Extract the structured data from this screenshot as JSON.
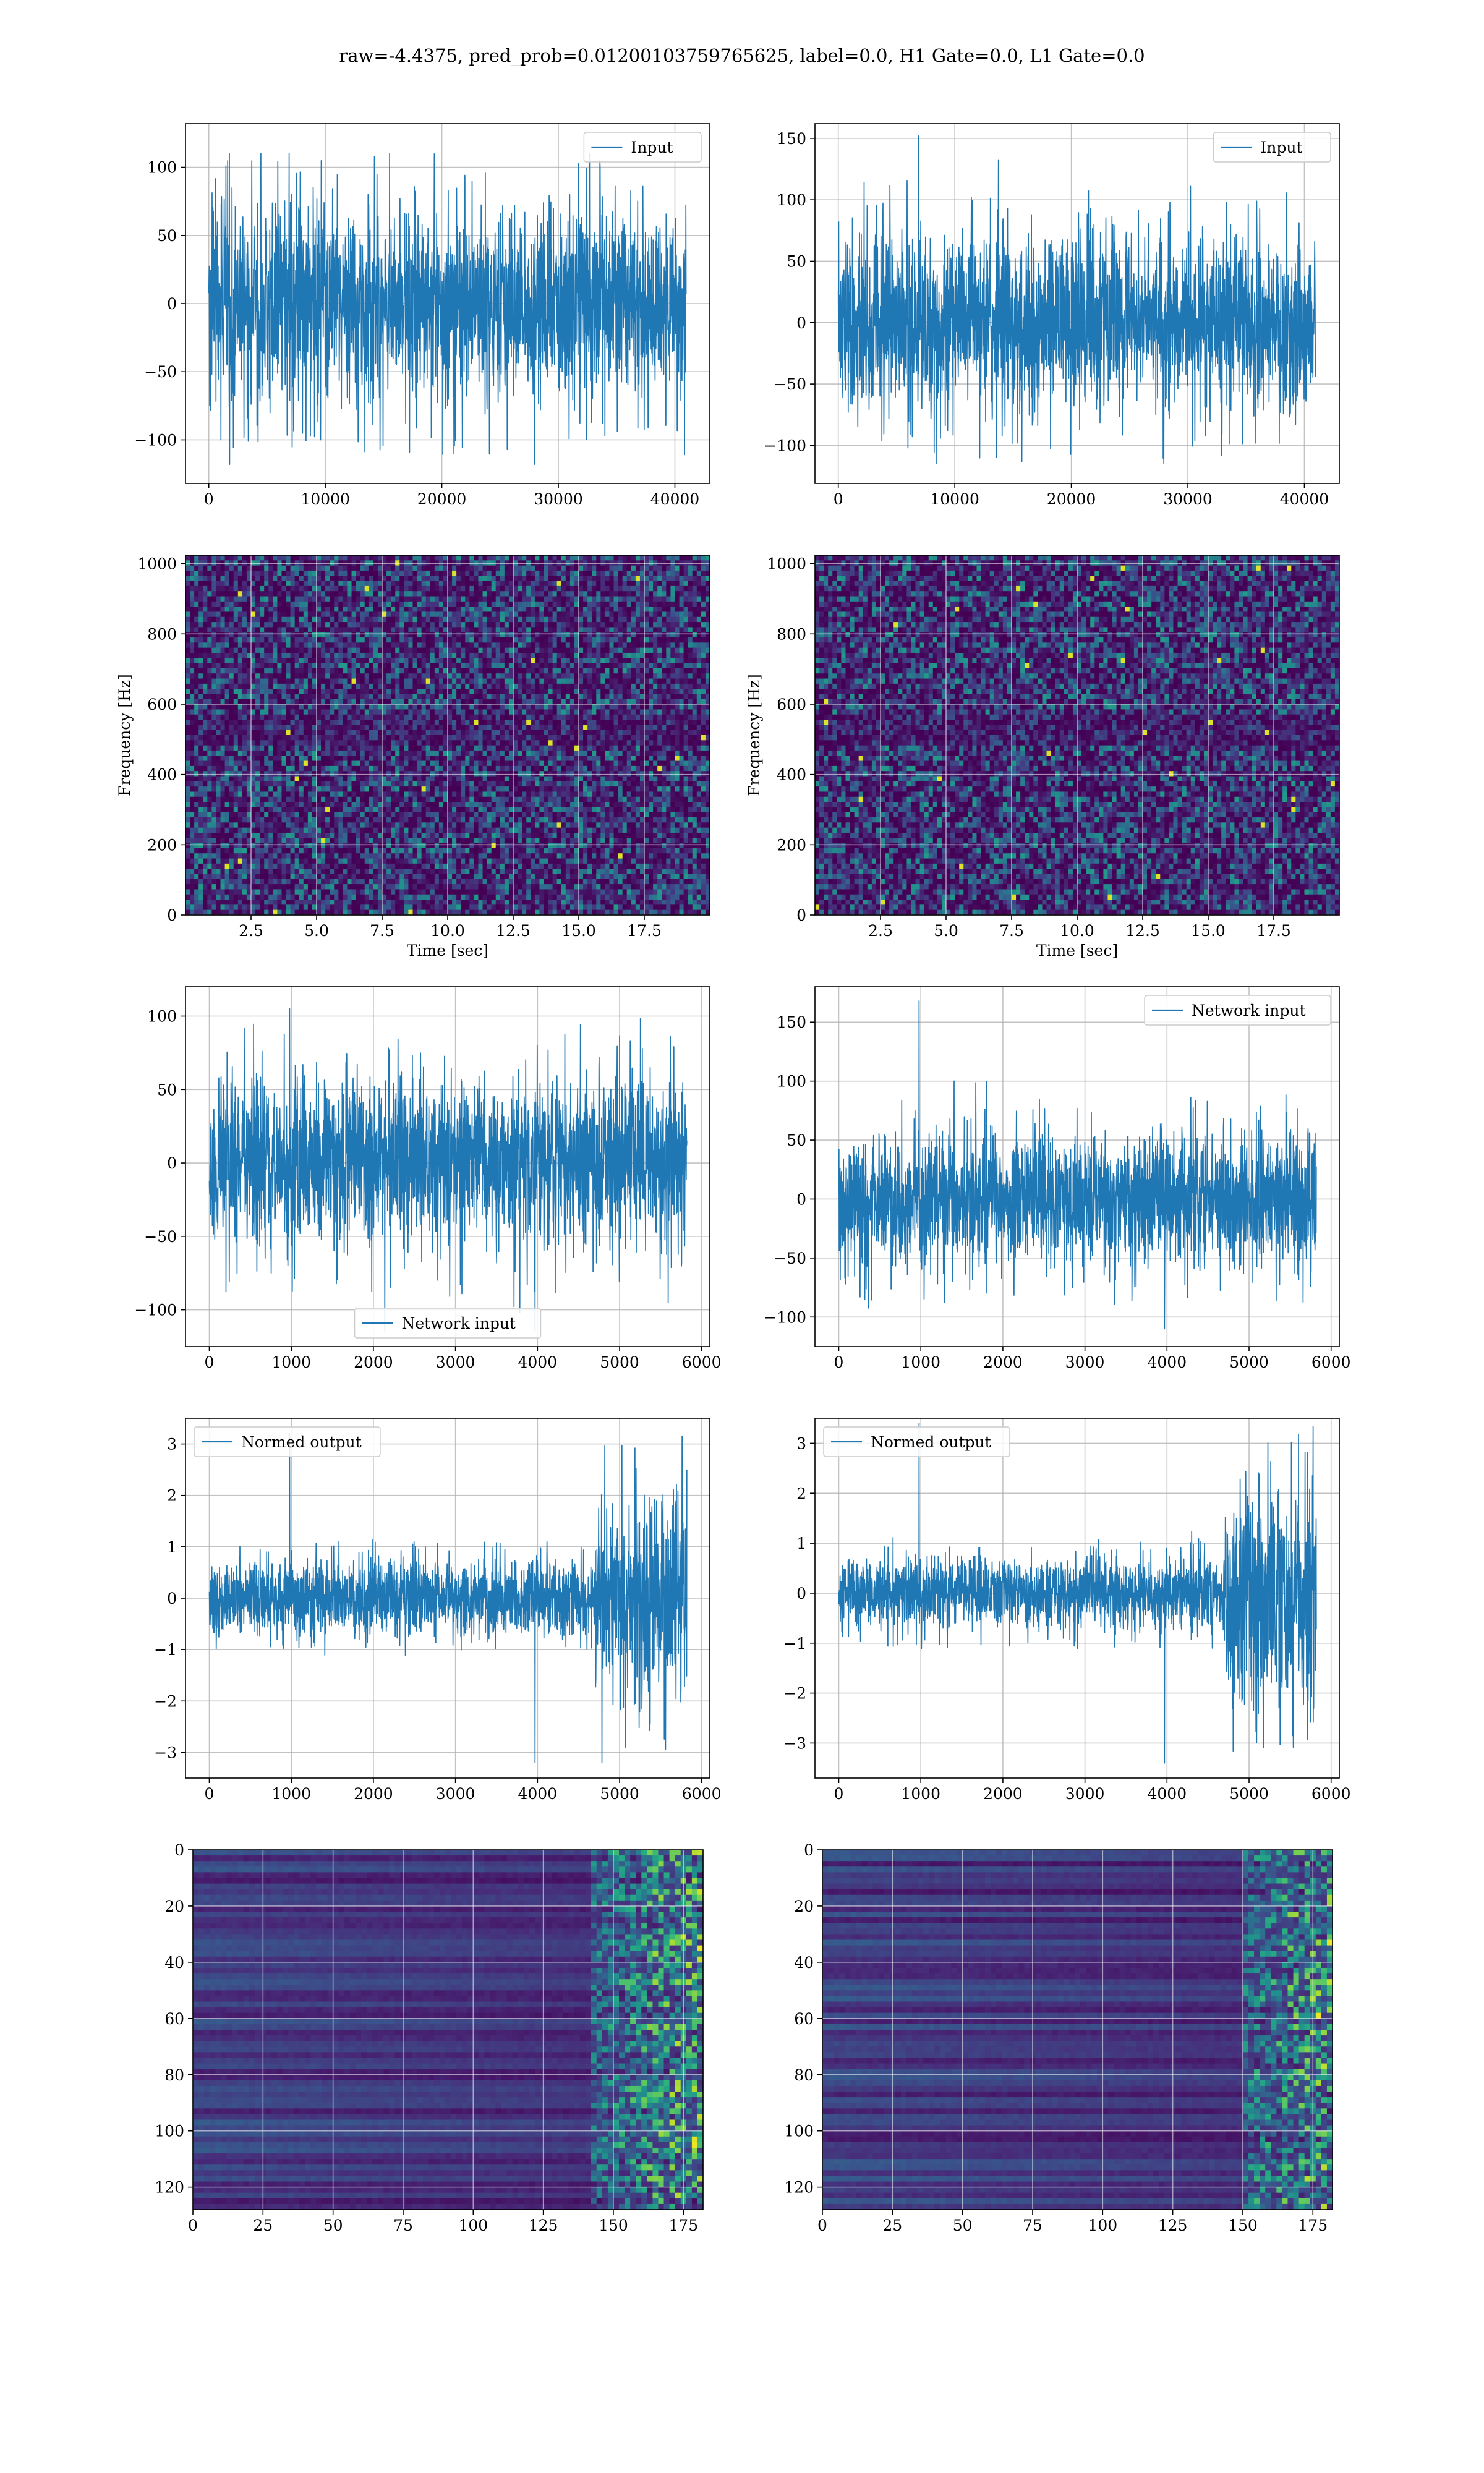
{
  "suptitle": "raw=-4.4375, pred_prob=0.01200103759765625, label=0.0, H1 Gate=0.0, L1 Gate=0.0",
  "colors": {
    "line": "#1f77b4",
    "grid": "#b0b0b0"
  },
  "chart_data": [
    {
      "id": "input-h1",
      "type": "line",
      "panel": "row1-left",
      "series": [
        {
          "name": "Input",
          "n": 40960,
          "amplitude": 35,
          "peak_max": 110,
          "peak_min": -118
        }
      ],
      "xlim": [
        -2000,
        43000
      ],
      "ylim": [
        -132,
        132
      ],
      "xticks": [
        0,
        10000,
        20000,
        30000,
        40000
      ],
      "yticks": [
        -100,
        -50,
        0,
        50,
        100
      ],
      "xlabel": "",
      "ylabel": "",
      "legend": "top-right",
      "grid": true
    },
    {
      "id": "input-l1",
      "type": "line",
      "panel": "row1-right",
      "series": [
        {
          "name": "Input",
          "n": 40960,
          "amplitude": 35,
          "peak_max": 152,
          "peak_min": -115
        }
      ],
      "xlim": [
        -2000,
        43000
      ],
      "ylim": [
        -131,
        162
      ],
      "xticks": [
        0,
        10000,
        20000,
        30000,
        40000
      ],
      "yticks": [
        -100,
        -50,
        0,
        50,
        100,
        150
      ],
      "xlabel": "",
      "ylabel": "",
      "legend": "top-right",
      "grid": true
    },
    {
      "id": "spectrogram-h1",
      "type": "heatmap",
      "panel": "row2-left",
      "xlim": [
        0,
        20
      ],
      "ylim": [
        0,
        1024
      ],
      "xticks": [
        2.5,
        5.0,
        7.5,
        10.0,
        12.5,
        15.0,
        17.5
      ],
      "yticks": [
        0,
        200,
        400,
        600,
        800,
        1000
      ],
      "xlabel": "Time [sec]",
      "ylabel": "Frequency [Hz]",
      "colormap": "viridis",
      "grid": true
    },
    {
      "id": "spectrogram-l1",
      "type": "heatmap",
      "panel": "row2-right",
      "xlim": [
        0,
        20
      ],
      "ylim": [
        0,
        1024
      ],
      "xticks": [
        2.5,
        5.0,
        7.5,
        10.0,
        12.5,
        15.0,
        17.5
      ],
      "yticks": [
        0,
        200,
        400,
        600,
        800,
        1000
      ],
      "xlabel": "Time [sec]",
      "ylabel": "Frequency [Hz]",
      "colormap": "viridis",
      "grid": true
    },
    {
      "id": "network-input-h1",
      "type": "line",
      "panel": "row3-left",
      "series": [
        {
          "name": "Network input",
          "n": 5820,
          "amplitude": 28,
          "peak_max": 105,
          "peak_min": -115
        }
      ],
      "xlim": [
        -290,
        6100
      ],
      "ylim": [
        -125,
        120
      ],
      "xticks": [
        0,
        1000,
        2000,
        3000,
        4000,
        5000,
        6000
      ],
      "yticks": [
        -100,
        -50,
        0,
        50,
        100
      ],
      "xlabel": "",
      "ylabel": "",
      "legend": "lower-center",
      "grid": true
    },
    {
      "id": "network-input-l1",
      "type": "line",
      "panel": "row3-right",
      "series": [
        {
          "name": "Network input",
          "n": 5820,
          "amplitude": 28,
          "peak_max": 168,
          "peak_min": -110
        }
      ],
      "xlim": [
        -290,
        6100
      ],
      "ylim": [
        -125,
        180
      ],
      "xticks": [
        0,
        1000,
        2000,
        3000,
        4000,
        5000,
        6000
      ],
      "yticks": [
        -100,
        -50,
        0,
        50,
        100,
        150
      ],
      "xlabel": "",
      "ylabel": "",
      "legend": "top-right",
      "grid": true
    },
    {
      "id": "normed-output-h1",
      "type": "line",
      "panel": "row4-left",
      "series": [
        {
          "name": "Normed output",
          "n": 5820,
          "amplitude": 0.35,
          "burst_start": 4700,
          "burst_amplitude": 1.05,
          "peak_max": 3.2,
          "peak_min": -3.2
        }
      ],
      "xlim": [
        -290,
        6100
      ],
      "ylim": [
        -3.5,
        3.5
      ],
      "xticks": [
        0,
        1000,
        2000,
        3000,
        4000,
        5000,
        6000
      ],
      "yticks": [
        -3,
        -2,
        -1,
        0,
        1,
        2,
        3
      ],
      "xlabel": "",
      "ylabel": "",
      "legend": "top-left",
      "grid": true
    },
    {
      "id": "normed-output-l1",
      "type": "line",
      "panel": "row4-right",
      "series": [
        {
          "name": "Normed output",
          "n": 5820,
          "amplitude": 0.35,
          "burst_start": 4700,
          "burst_amplitude": 1.05,
          "peak_max": 3.4,
          "peak_min": -3.4
        }
      ],
      "xlim": [
        -290,
        6100
      ],
      "ylim": [
        -3.7,
        3.5
      ],
      "xticks": [
        0,
        1000,
        2000,
        3000,
        4000,
        5000,
        6000
      ],
      "yticks": [
        -3,
        -2,
        -1,
        0,
        1,
        2,
        3
      ],
      "xlabel": "",
      "ylabel": "",
      "legend": "top-left",
      "grid": true
    },
    {
      "id": "feature-map-h1",
      "type": "heatmap",
      "panel": "row5-left",
      "xlim": [
        0,
        182
      ],
      "ylim": [
        128,
        0
      ],
      "xticks": [
        0,
        25,
        50,
        75,
        100,
        125,
        150,
        175
      ],
      "yticks": [
        0,
        20,
        40,
        60,
        80,
        100,
        120
      ],
      "xlabel": "",
      "ylabel": "",
      "colormap": "viridis",
      "grid": true,
      "activity_start": 140
    },
    {
      "id": "feature-map-l1",
      "type": "heatmap",
      "panel": "row5-right",
      "xlim": [
        0,
        182
      ],
      "ylim": [
        128,
        0
      ],
      "xticks": [
        0,
        25,
        50,
        75,
        100,
        125,
        150,
        175
      ],
      "yticks": [
        0,
        20,
        40,
        60,
        80,
        100,
        120
      ],
      "xlabel": "",
      "ylabel": "",
      "colormap": "viridis",
      "grid": true,
      "activity_start": 148
    }
  ]
}
